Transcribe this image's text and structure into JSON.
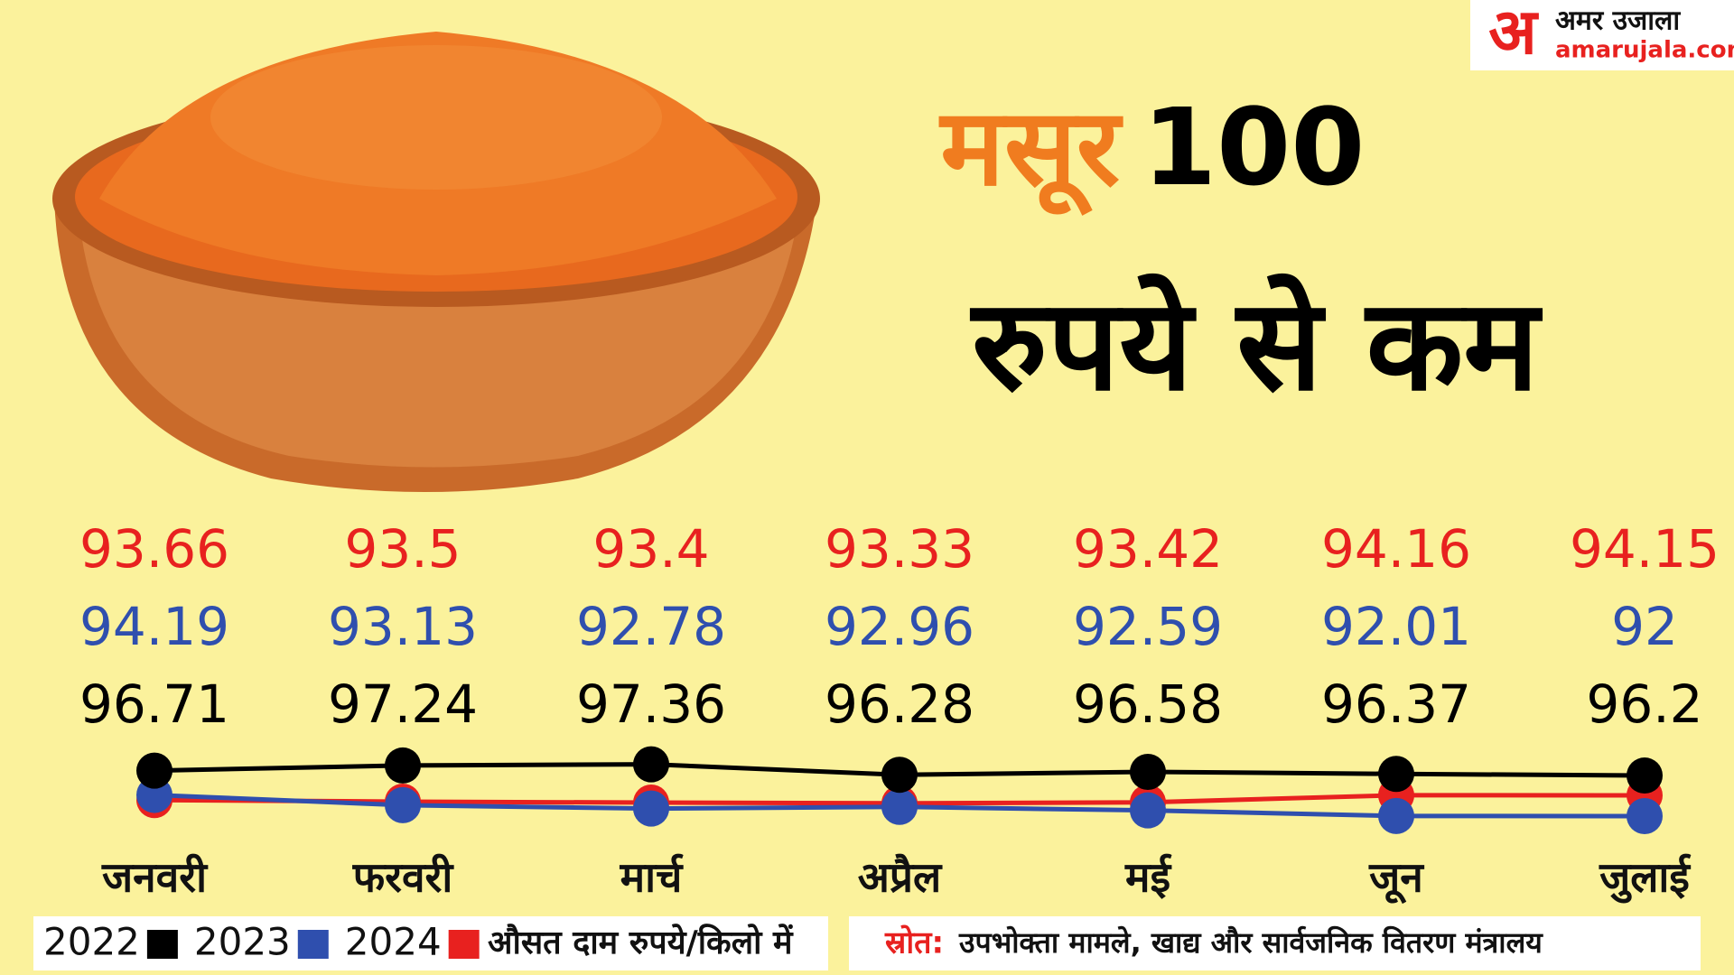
{
  "brand": {
    "name": "अमर उजाला",
    "url": "amarujala.com"
  },
  "chart_data": {
    "type": "line",
    "title_highlight": "मसूर",
    "title": "100",
    "subtitle": "रुपये से कम",
    "categories": [
      "जनवरी",
      "फरवरी",
      "मार्च",
      "अप्रैल",
      "मई",
      "जून",
      "जुलाई"
    ],
    "series": [
      {
        "name": "2022",
        "color": "#000000",
        "values": [
          96.71,
          97.24,
          97.36,
          96.28,
          96.58,
          96.37,
          96.2
        ]
      },
      {
        "name": "2023",
        "color": "#2f4fae",
        "values": [
          94.19,
          93.13,
          92.78,
          92.96,
          92.59,
          92.01,
          92
        ]
      },
      {
        "name": "2024",
        "color": "#e8211f",
        "values": [
          93.66,
          93.5,
          93.4,
          93.33,
          93.42,
          94.16,
          94.15
        ]
      }
    ],
    "unit_note": "औसत दाम रुपये/किलो में",
    "source_label": "स्रोत:",
    "source": "उपभोक्ता मामले, खाद्य और सार्वजनिक वितरण मंत्रालय"
  }
}
